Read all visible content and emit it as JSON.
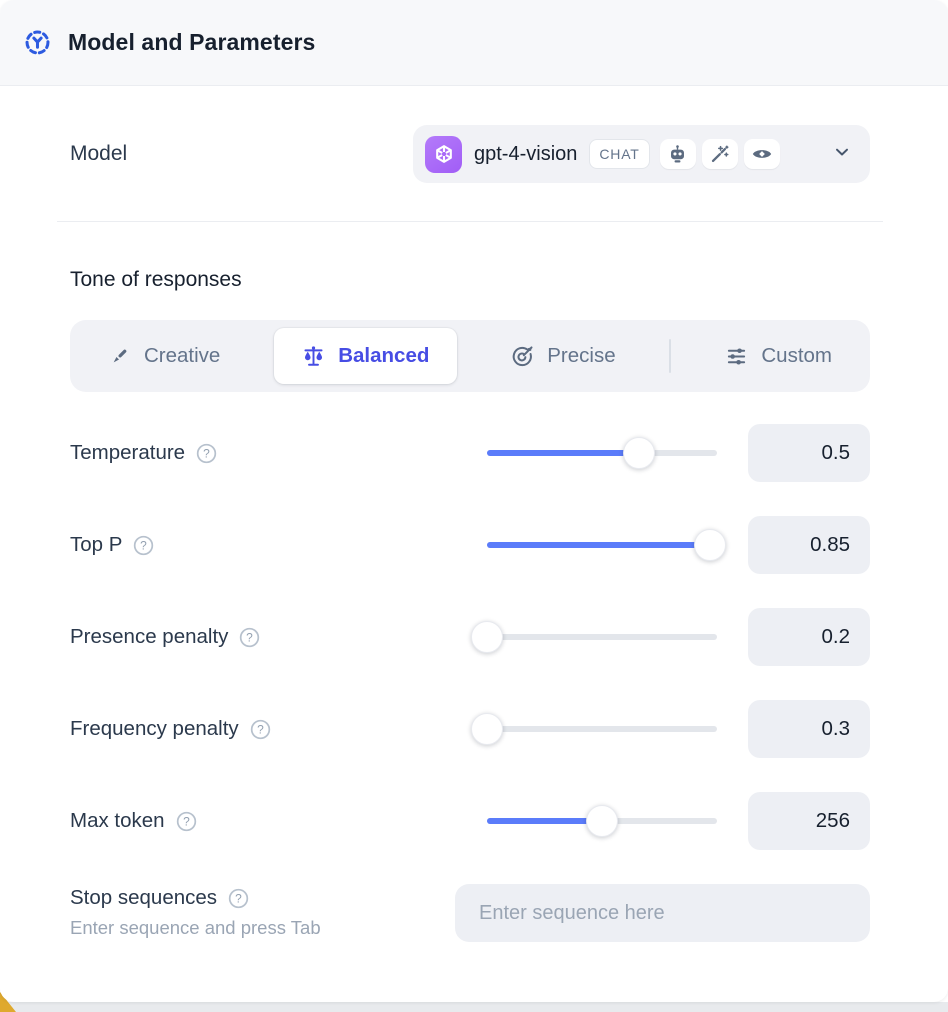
{
  "header": {
    "title": "Model and Parameters",
    "icon": "model-hub-icon"
  },
  "model": {
    "label": "Model",
    "selected": {
      "name": "gpt-4-vision",
      "provider_icon": "openai-logo",
      "type_badge": "CHAT",
      "capability_icons": [
        "robot-icon",
        "magic-wand-icon",
        "vision-eye-icon"
      ],
      "expander_icon": "chevron-down-icon"
    }
  },
  "tone": {
    "label": "Tone of responses",
    "options": [
      {
        "label": "Creative",
        "icon": "paint-brush-icon",
        "selected": false
      },
      {
        "label": "Balanced",
        "icon": "balance-scale-icon",
        "selected": true
      },
      {
        "label": "Precise",
        "icon": "target-dart-icon",
        "selected": false
      },
      {
        "label": "Custom",
        "icon": "sliders-icon",
        "selected": false
      }
    ]
  },
  "parameters": [
    {
      "label": "Temperature",
      "value": "0.5",
      "fill_percent": 66
    },
    {
      "label": "Top P",
      "value": "0.85",
      "fill_percent": 97
    },
    {
      "label": "Presence penalty",
      "value": "0.2",
      "fill_percent": 0
    },
    {
      "label": "Frequency penalty",
      "value": "0.3",
      "fill_percent": 0
    },
    {
      "label": "Max token",
      "value": "256",
      "fill_percent": 50
    }
  ],
  "stop_sequences": {
    "label": "Stop sequences",
    "hint": "Enter sequence and press Tab",
    "placeholder": "Enter sequence here",
    "value": ""
  },
  "colors": {
    "accent-indigo": "#474de4",
    "slider-blue": "#5b7cfa",
    "header-icon-blue": "#2d5be0",
    "title-text": "#17202e",
    "label-text": "#2b394c",
    "muted-text": "#64748b",
    "placeholder-text": "#9aa5b4",
    "chip-bg": "#f1f2f6",
    "field-bg": "#edeff4",
    "card-bg": "#ffffff",
    "header-bg": "#f7f8fa",
    "divider": "#ebedf1",
    "track-bg": "#e3e6eb",
    "badge-border": "#e3e6eb",
    "openai-purple": "#a15df6",
    "icon-slate": "#5c6b80",
    "bottom-accent-yellow": "#dfa92e",
    "page-bg": "#e8eaed"
  }
}
